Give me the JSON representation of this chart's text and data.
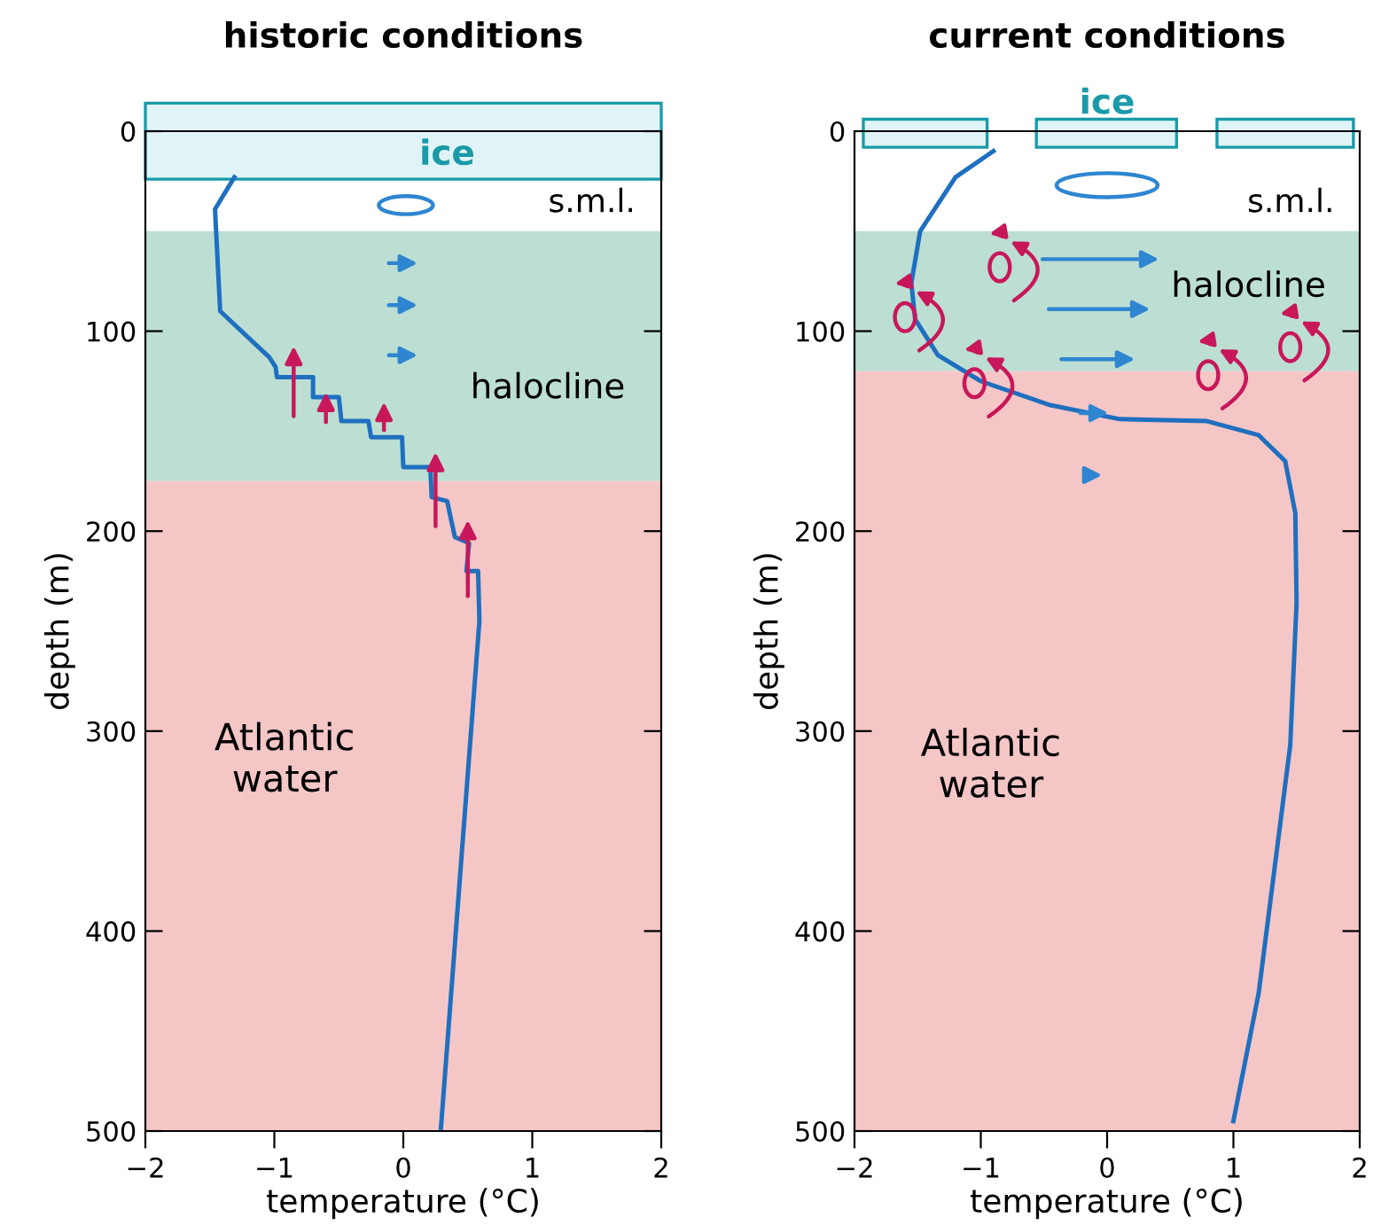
{
  "chart_data": [
    {
      "type": "line",
      "title": "historic conditions",
      "xlabel": "temperature (°C)",
      "ylabel": "depth (m)",
      "series": [
        {
          "color": "#1f6fbf",
          "x": [
            -1.31,
            -1.46,
            -1.42,
            -1.04,
            -0.99,
            -0.98,
            -0.7,
            -0.7,
            -0.5,
            -0.48,
            -0.27,
            -0.25,
            -0.01,
            0.0,
            0.21,
            0.22,
            0.34,
            0.4,
            0.51,
            0.49,
            0.58,
            0.59,
            0.29
          ],
          "values": [
            23,
            39,
            90,
            113,
            118,
            123,
            123,
            133,
            133,
            145,
            145,
            153,
            153,
            168,
            168,
            183,
            185,
            203,
            206,
            220,
            220,
            245,
            500
          ]
        }
      ],
      "bands": [
        {
          "axis": "y",
          "from": 0,
          "to": 24,
          "color": "#e0f4f7",
          "label": "ice"
        },
        {
          "axis": "y",
          "from": 50,
          "to": 175,
          "color": "#bcded3",
          "label": "halocline"
        },
        {
          "axis": "y",
          "from": 175,
          "to": 500,
          "color": "#f5c6c6",
          "label": "Atlantic\nwater"
        }
      ],
      "annotations": [
        "s.m.l."
      ],
      "xlim": [
        -2,
        2
      ],
      "ylim": [
        500,
        0
      ],
      "xticks": [
        -2,
        -1,
        0,
        1,
        2
      ],
      "yticks": [
        0,
        100,
        200,
        300,
        400,
        500
      ],
      "grid": false,
      "line_style": "solid",
      "marker": "none"
    },
    {
      "type": "line",
      "title": "current conditions",
      "xlabel": "temperature (°C)",
      "ylabel": "depth (m)",
      "series": [
        {
          "color": "#1f6fbf",
          "x": [
            -0.9,
            -1.2,
            -1.48,
            -1.55,
            -1.52,
            -1.34,
            -1.0,
            -0.45,
            0.1,
            0.79,
            1.2,
            1.41,
            1.49,
            1.5,
            1.45,
            1.2,
            1.0
          ],
          "values": [
            10,
            23,
            50,
            76,
            94,
            112,
            125,
            137,
            144,
            145,
            152,
            165,
            191,
            236,
            307,
            431,
            495
          ]
        }
      ],
      "bands": [
        {
          "axis": "y",
          "from": 50,
          "to": 120,
          "color": "#bcded3",
          "label": "halocline"
        },
        {
          "axis": "y",
          "from": 120,
          "to": 500,
          "color": "#f5c6c6",
          "label": "Atlantic\nwater"
        }
      ],
      "annotations": [
        "ice",
        "s.m.l."
      ],
      "xlim": [
        -2,
        2
      ],
      "ylim": [
        500,
        0
      ],
      "xticks": [
        -2,
        -1,
        0,
        1,
        2
      ],
      "yticks": [
        0,
        100,
        200,
        300,
        400,
        500
      ],
      "grid": false,
      "line_style": "solid",
      "marker": "none"
    }
  ]
}
